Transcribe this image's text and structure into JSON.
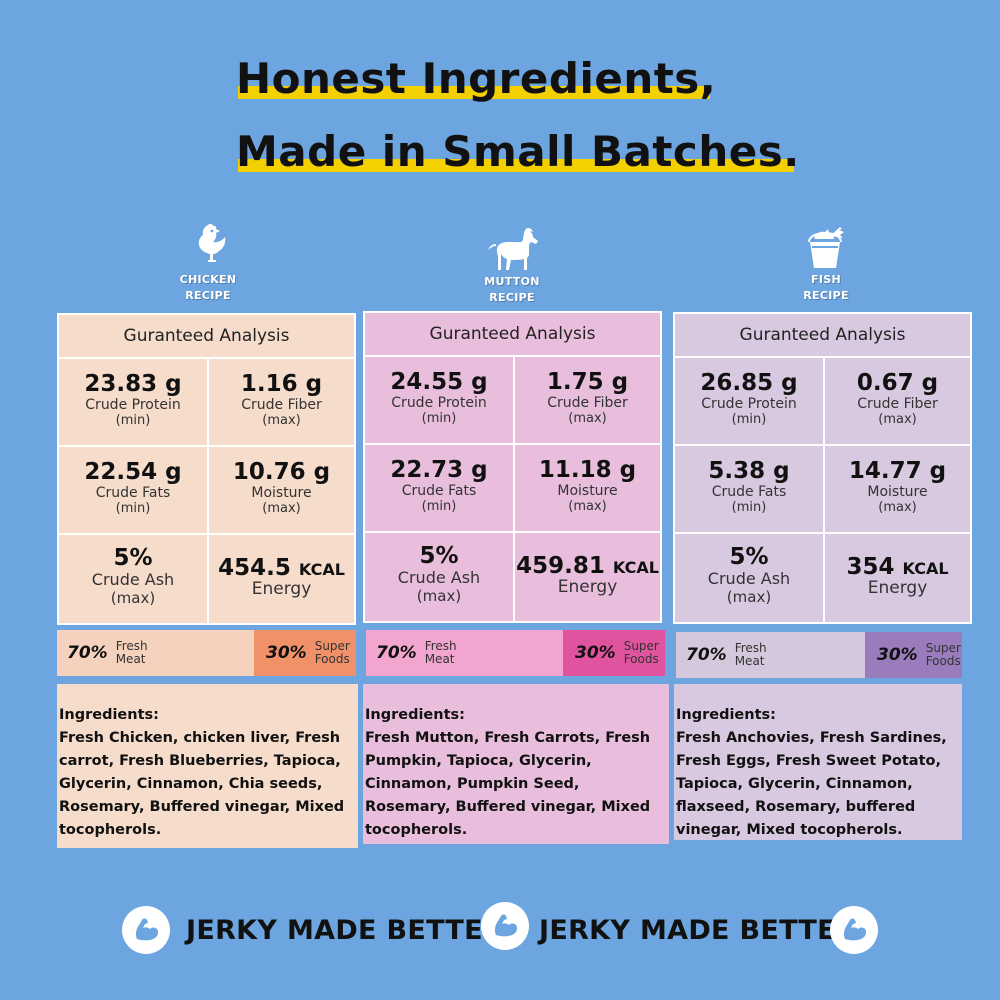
{
  "headline": {
    "line1": "Honest Ingredients,",
    "line2": "Made in Small Batches."
  },
  "icons": [
    "chicken-icon",
    "goat-icon",
    "fish-bucket-icon",
    "flexed-arm-icon"
  ],
  "colors": {
    "background": "#6ca5df",
    "highlight": "#f5d000",
    "chicken_card": "#f6dccb",
    "chicken_superfood": "#f0916a",
    "mutton_card": "#e8bedc",
    "mutton_superfood": "#e0549f",
    "fish_card": "#d8c8e0",
    "fish_superfood": "#9a7cbc"
  },
  "recipes": [
    {
      "label": "CHICKEN\nRECIPE",
      "analysis_title": "Guranteed Analysis",
      "protein": {
        "value": "23.83 g",
        "label": "Crude Protein",
        "sub": "(min)"
      },
      "fiber": {
        "value": "1.16 g",
        "label": "Crude Fiber",
        "sub": "(max)"
      },
      "fats": {
        "value": "22.54 g",
        "label": "Crude Fats",
        "sub": "(min)"
      },
      "moisture": {
        "value": "10.76 g",
        "label": "Moisture",
        "sub": "(max)"
      },
      "ash": {
        "value": "5%",
        "label": "Crude Ash",
        "sub": "(max)"
      },
      "energy": {
        "value": "454.5",
        "unit": "KCAL",
        "label": "Energy"
      },
      "meat_pct": "70%",
      "meat_label": "Fresh\nMeat",
      "super_pct": "30%",
      "super_label": "Super\nFoods",
      "ingredients_title": "Ingredients:",
      "ingredients": "Fresh Chicken, chicken liver, Fresh carrot, Fresh Blueberries, Tapioca, Glycerin, Cinnamon, Chia seeds, Rosemary, Buffered vinegar, Mixed tocopherols."
    },
    {
      "label": "MUTTON\nRECIPE",
      "analysis_title": "Guranteed Analysis",
      "protein": {
        "value": "24.55 g",
        "label": "Crude Protein",
        "sub": "(min)"
      },
      "fiber": {
        "value": "1.75 g",
        "label": "Crude Fiber",
        "sub": "(max)"
      },
      "fats": {
        "value": "22.73 g",
        "label": "Crude Fats",
        "sub": "(min)"
      },
      "moisture": {
        "value": "11.18 g",
        "label": "Moisture",
        "sub": "(max)"
      },
      "ash": {
        "value": "5%",
        "label": "Crude Ash",
        "sub": "(max)"
      },
      "energy": {
        "value": "459.81",
        "unit": "KCAL",
        "label": "Energy"
      },
      "meat_pct": "70%",
      "meat_label": "Fresh\nMeat",
      "super_pct": "30%",
      "super_label": "Super\nFoods",
      "ingredients_title": "Ingredients:",
      "ingredients": "Fresh Mutton, Fresh Carrots, Fresh Pumpkin, Tapioca, Glycerin, Cinnamon, Pumpkin Seed, Rosemary, Buffered vinegar, Mixed tocopherols."
    },
    {
      "label": "FISH\nRECIPE",
      "analysis_title": "Guranteed Analysis",
      "protein": {
        "value": "26.85 g",
        "label": "Crude Protein",
        "sub": "(min)"
      },
      "fiber": {
        "value": "0.67 g",
        "label": "Crude Fiber",
        "sub": "(max)"
      },
      "fats": {
        "value": "5.38 g",
        "label": "Crude Fats",
        "sub": "(min)"
      },
      "moisture": {
        "value": "14.77 g",
        "label": "Moisture",
        "sub": "(max)"
      },
      "ash": {
        "value": "5%",
        "label": "Crude Ash",
        "sub": "(max)"
      },
      "energy": {
        "value": "354",
        "unit": "KCAL",
        "label": "Energy"
      },
      "meat_pct": "70%",
      "meat_label": "Fresh\nMeat",
      "super_pct": "30%",
      "super_label": "Super\nFoods",
      "ingredients_title": "Ingredients:",
      "ingredients": "Fresh Anchovies, Fresh Sardines, Fresh Eggs, Fresh Sweet Potato, Tapioca, Glycerin, Cinnamon, flaxseed, Rosemary, buffered vinegar, Mixed tocopherols."
    }
  ],
  "footer": {
    "slogan1": "JERKY MADE BETTER",
    "slogan2": "JERKY MADE BETTER"
  }
}
